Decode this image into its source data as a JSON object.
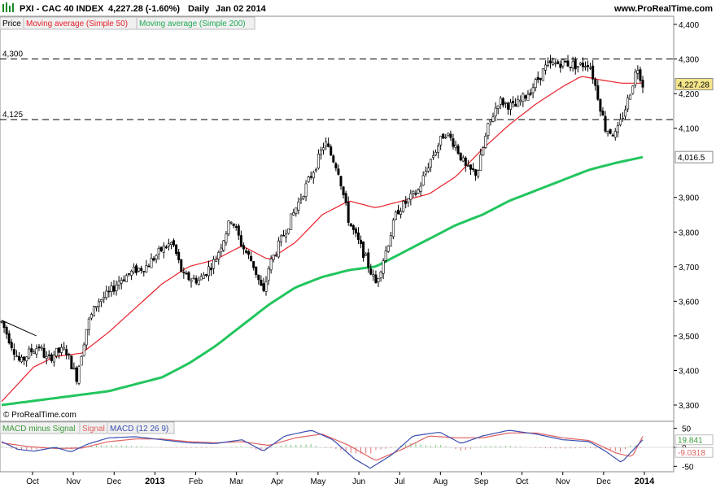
{
  "header": {
    "symbol": "PXI - CAC 40 INDEX",
    "quote": "4,227.28 (-1.60%)",
    "period": "Daily",
    "date": "Jan 02 2014",
    "website": "www.ProRealTime.com"
  },
  "legend": {
    "price": "Price",
    "ma50": "Moving average (Simple 50)",
    "ma200": "Moving average (Simple 200)"
  },
  "watermark": "© ProRealTime.com",
  "macd_legend": {
    "diff": "MACD minus Signal",
    "signal": "Signal",
    "macd": "MACD (12 26 9)"
  },
  "colors": {
    "ma50": "#e8202a",
    "ma200": "#22c55e",
    "candle": "#000000",
    "up_fill": "#ffffff",
    "down_fill": "#000000",
    "price_tag": "#f5e58a",
    "ma200_tag": "#ffffff",
    "macd_line": "#3a4fb0",
    "signal_line": "#e06060",
    "hist_pos": "#7ac77a",
    "hist_neg": "#e07070"
  },
  "chart_data": {
    "type": "candlestick",
    "ylim": [
      3300,
      4400
    ],
    "yticks": [
      "4,400",
      "4,300",
      "4,200",
      "4,100",
      "3,900",
      "3,800",
      "3,700",
      "3,600",
      "3,500",
      "3,400",
      "3,300"
    ],
    "ytick_values": [
      4400,
      4300,
      4200,
      4100,
      3900,
      3800,
      3700,
      3600,
      3500,
      3400,
      3300
    ],
    "xlabels": [
      "Oct",
      "Nov",
      "Dec",
      "2013",
      "Feb",
      "Mar",
      "Apr",
      "May",
      "Jun",
      "Jul",
      "Aug",
      "Sep",
      "Oct",
      "Nov",
      "Dec",
      "2014"
    ],
    "bold_xlabels": [
      "2013",
      "2014"
    ],
    "hlines": [
      {
        "value": 4300,
        "label": "4,300"
      },
      {
        "value": 4125,
        "label": "4,125"
      }
    ],
    "last_price": {
      "value": 4227.28,
      "label": "4,227.28"
    },
    "ma200_last": {
      "value": 4016.5,
      "label": "4,016.5"
    },
    "price_path": [
      {
        "m": 0,
        "v": 3540
      },
      {
        "m": 0.2,
        "v": 3470
      },
      {
        "m": 0.35,
        "v": 3420
      },
      {
        "m": 0.5,
        "v": 3450
      },
      {
        "m": 0.7,
        "v": 3470
      },
      {
        "m": 0.85,
        "v": 3430
      },
      {
        "m": 1.0,
        "v": 3450
      },
      {
        "m": 1.2,
        "v": 3460
      },
      {
        "m": 1.4,
        "v": 3380
      },
      {
        "m": 1.6,
        "v": 3530
      },
      {
        "m": 1.8,
        "v": 3600
      },
      {
        "m": 2.0,
        "v": 3620
      },
      {
        "m": 2.2,
        "v": 3660
      },
      {
        "m": 2.5,
        "v": 3690
      },
      {
        "m": 2.7,
        "v": 3700
      },
      {
        "m": 3.0,
        "v": 3750
      },
      {
        "m": 3.2,
        "v": 3770
      },
      {
        "m": 3.4,
        "v": 3670
      },
      {
        "m": 3.7,
        "v": 3660
      },
      {
        "m": 4.0,
        "v": 3720
      },
      {
        "m": 4.3,
        "v": 3840
      },
      {
        "m": 4.5,
        "v": 3760
      },
      {
        "m": 4.7,
        "v": 3710
      },
      {
        "m": 4.9,
        "v": 3620
      },
      {
        "m": 5.0,
        "v": 3700
      },
      {
        "m": 5.3,
        "v": 3800
      },
      {
        "m": 5.6,
        "v": 3900
      },
      {
        "m": 5.9,
        "v": 4000
      },
      {
        "m": 6.05,
        "v": 4060
      },
      {
        "m": 6.3,
        "v": 3980
      },
      {
        "m": 6.5,
        "v": 3830
      },
      {
        "m": 6.8,
        "v": 3730
      },
      {
        "m": 7.0,
        "v": 3650
      },
      {
        "m": 7.2,
        "v": 3750
      },
      {
        "m": 7.4,
        "v": 3860
      },
      {
        "m": 7.6,
        "v": 3890
      },
      {
        "m": 7.8,
        "v": 3920
      },
      {
        "m": 8.0,
        "v": 4000
      },
      {
        "m": 8.3,
        "v": 4090
      },
      {
        "m": 8.5,
        "v": 4050
      },
      {
        "m": 8.7,
        "v": 3980
      },
      {
        "m": 8.9,
        "v": 3970
      },
      {
        "m": 9.1,
        "v": 4100
      },
      {
        "m": 9.3,
        "v": 4180
      },
      {
        "m": 9.6,
        "v": 4160
      },
      {
        "m": 9.9,
        "v": 4210
      },
      {
        "m": 10.2,
        "v": 4280
      },
      {
        "m": 10.5,
        "v": 4290
      },
      {
        "m": 10.8,
        "v": 4280
      },
      {
        "m": 11.0,
        "v": 4290
      },
      {
        "m": 11.15,
        "v": 4200
      },
      {
        "m": 11.3,
        "v": 4100
      },
      {
        "m": 11.5,
        "v": 4080
      },
      {
        "m": 11.7,
        "v": 4170
      },
      {
        "m": 11.9,
        "v": 4280
      },
      {
        "m": 12.0,
        "v": 4227
      }
    ],
    "ma50_path": [
      {
        "m": 0,
        "v": 3310
      },
      {
        "m": 0.3,
        "v": 3360
      },
      {
        "m": 0.6,
        "v": 3410
      },
      {
        "m": 1.0,
        "v": 3440
      },
      {
        "m": 1.5,
        "v": 3450
      },
      {
        "m": 2.0,
        "v": 3510
      },
      {
        "m": 2.5,
        "v": 3580
      },
      {
        "m": 3.0,
        "v": 3650
      },
      {
        "m": 3.5,
        "v": 3700
      },
      {
        "m": 4.0,
        "v": 3720
      },
      {
        "m": 4.5,
        "v": 3760
      },
      {
        "m": 5.0,
        "v": 3720
      },
      {
        "m": 5.5,
        "v": 3770
      },
      {
        "m": 6.0,
        "v": 3850
      },
      {
        "m": 6.5,
        "v": 3890
      },
      {
        "m": 7.0,
        "v": 3870
      },
      {
        "m": 7.5,
        "v": 3890
      },
      {
        "m": 8.0,
        "v": 3910
      },
      {
        "m": 8.5,
        "v": 3960
      },
      {
        "m": 9.0,
        "v": 4040
      },
      {
        "m": 9.5,
        "v": 4110
      },
      {
        "m": 10.0,
        "v": 4170
      },
      {
        "m": 10.5,
        "v": 4220
      },
      {
        "m": 10.85,
        "v": 4250
      },
      {
        "m": 11.2,
        "v": 4240
      },
      {
        "m": 11.6,
        "v": 4230
      },
      {
        "m": 12.0,
        "v": 4230
      }
    ],
    "ma200_path": [
      {
        "m": 0,
        "v": 3300
      },
      {
        "m": 1.0,
        "v": 3320
      },
      {
        "m": 2.0,
        "v": 3340
      },
      {
        "m": 3.0,
        "v": 3380
      },
      {
        "m": 3.5,
        "v": 3420
      },
      {
        "m": 4.0,
        "v": 3470
      },
      {
        "m": 4.5,
        "v": 3530
      },
      {
        "m": 5.0,
        "v": 3590
      },
      {
        "m": 5.5,
        "v": 3640
      },
      {
        "m": 6.0,
        "v": 3670
      },
      {
        "m": 6.5,
        "v": 3690
      },
      {
        "m": 7.0,
        "v": 3700
      },
      {
        "m": 7.5,
        "v": 3740
      },
      {
        "m": 8.0,
        "v": 3780
      },
      {
        "m": 8.5,
        "v": 3820
      },
      {
        "m": 9.0,
        "v": 3850
      },
      {
        "m": 9.5,
        "v": 3890
      },
      {
        "m": 10.0,
        "v": 3920
      },
      {
        "m": 10.5,
        "v": 3950
      },
      {
        "m": 11.0,
        "v": 3980
      },
      {
        "m": 11.5,
        "v": 4000
      },
      {
        "m": 12.0,
        "v": 4016.5
      }
    ],
    "macd": {
      "ylim": [
        -60,
        60
      ],
      "yticks": [
        "50",
        "0",
        "-50"
      ],
      "ytick_values": [
        50,
        0,
        -50
      ],
      "last_macd": {
        "value": 19.841,
        "label": "19.841"
      },
      "last_diff": {
        "value": -9.0318,
        "label": "-9.0318"
      },
      "macd_path": [
        {
          "m": 0,
          "v": 15
        },
        {
          "m": 0.3,
          "v": -5
        },
        {
          "m": 0.6,
          "v": -10
        },
        {
          "m": 1.0,
          "v": 0
        },
        {
          "m": 1.3,
          "v": -12
        },
        {
          "m": 1.6,
          "v": 8
        },
        {
          "m": 2.0,
          "v": 25
        },
        {
          "m": 2.5,
          "v": 28
        },
        {
          "m": 3.0,
          "v": 20
        },
        {
          "m": 3.5,
          "v": 12
        },
        {
          "m": 4.0,
          "v": 10
        },
        {
          "m": 4.5,
          "v": 20
        },
        {
          "m": 4.9,
          "v": -10
        },
        {
          "m": 5.3,
          "v": 30
        },
        {
          "m": 5.8,
          "v": 45
        },
        {
          "m": 6.2,
          "v": 20
        },
        {
          "m": 6.6,
          "v": -30
        },
        {
          "m": 6.9,
          "v": -55
        },
        {
          "m": 7.3,
          "v": -20
        },
        {
          "m": 7.7,
          "v": 30
        },
        {
          "m": 8.2,
          "v": 40
        },
        {
          "m": 8.6,
          "v": 10
        },
        {
          "m": 9.0,
          "v": 30
        },
        {
          "m": 9.5,
          "v": 45
        },
        {
          "m": 10.0,
          "v": 35
        },
        {
          "m": 10.5,
          "v": 20
        },
        {
          "m": 11.0,
          "v": 15
        },
        {
          "m": 11.3,
          "v": -10
        },
        {
          "m": 11.6,
          "v": -40
        },
        {
          "m": 11.8,
          "v": -10
        },
        {
          "m": 12.0,
          "v": 19.841
        }
      ],
      "signal_path": [
        {
          "m": 0,
          "v": 12
        },
        {
          "m": 0.5,
          "v": 2
        },
        {
          "m": 1.0,
          "v": -3
        },
        {
          "m": 1.5,
          "v": -2
        },
        {
          "m": 2.0,
          "v": 15
        },
        {
          "m": 2.5,
          "v": 22
        },
        {
          "m": 3.0,
          "v": 22
        },
        {
          "m": 3.5,
          "v": 15
        },
        {
          "m": 4.0,
          "v": 12
        },
        {
          "m": 4.5,
          "v": 15
        },
        {
          "m": 5.0,
          "v": 5
        },
        {
          "m": 5.5,
          "v": 25
        },
        {
          "m": 6.0,
          "v": 35
        },
        {
          "m": 6.5,
          "v": 5
        },
        {
          "m": 7.0,
          "v": -35
        },
        {
          "m": 7.5,
          "v": -5
        },
        {
          "m": 8.0,
          "v": 30
        },
        {
          "m": 8.5,
          "v": 25
        },
        {
          "m": 9.0,
          "v": 25
        },
        {
          "m": 9.5,
          "v": 38
        },
        {
          "m": 10.0,
          "v": 38
        },
        {
          "m": 10.5,
          "v": 25
        },
        {
          "m": 11.0,
          "v": 18
        },
        {
          "m": 11.5,
          "v": -15
        },
        {
          "m": 11.8,
          "v": -25
        },
        {
          "m": 12.0,
          "v": 29
        }
      ]
    }
  }
}
